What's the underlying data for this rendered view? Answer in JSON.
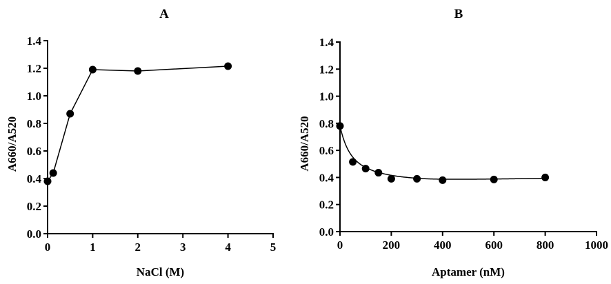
{
  "chart_data": [
    {
      "type": "line",
      "title": "A",
      "xlabel": "NaCl (M)",
      "ylabel": "A660/A520",
      "xlim": [
        0,
        5
      ],
      "ylim": [
        0,
        1.4
      ],
      "xticks": [
        "0",
        "1",
        "2",
        "3",
        "4",
        "5"
      ],
      "yticks": [
        "0.0",
        "0.2",
        "0.4",
        "0.6",
        "0.8",
        "1.0",
        "1.2",
        "1.4"
      ],
      "x": [
        0,
        0.125,
        0.5,
        1,
        2,
        4
      ],
      "y": [
        0.38,
        0.44,
        0.87,
        1.19,
        1.18,
        1.215
      ],
      "grid": false,
      "connect": "straight"
    },
    {
      "type": "line",
      "title": "B",
      "xlabel": "Aptamer (nM)",
      "ylabel": "A660/A520",
      "xlim": [
        0,
        1000
      ],
      "ylim": [
        0,
        1.4
      ],
      "xticks": [
        "0",
        "200",
        "400",
        "600",
        "800",
        "1000"
      ],
      "yticks": [
        "0.0",
        "0.2",
        "0.4",
        "0.6",
        "0.8",
        "1.0",
        "1.2",
        "1.4"
      ],
      "x": [
        0,
        50,
        100,
        150,
        200,
        300,
        400,
        600,
        800
      ],
      "y": [
        0.78,
        0.515,
        0.465,
        0.435,
        0.39,
        0.39,
        0.38,
        0.385,
        0.4
      ],
      "grid": false,
      "connect": "smooth fit"
    }
  ]
}
